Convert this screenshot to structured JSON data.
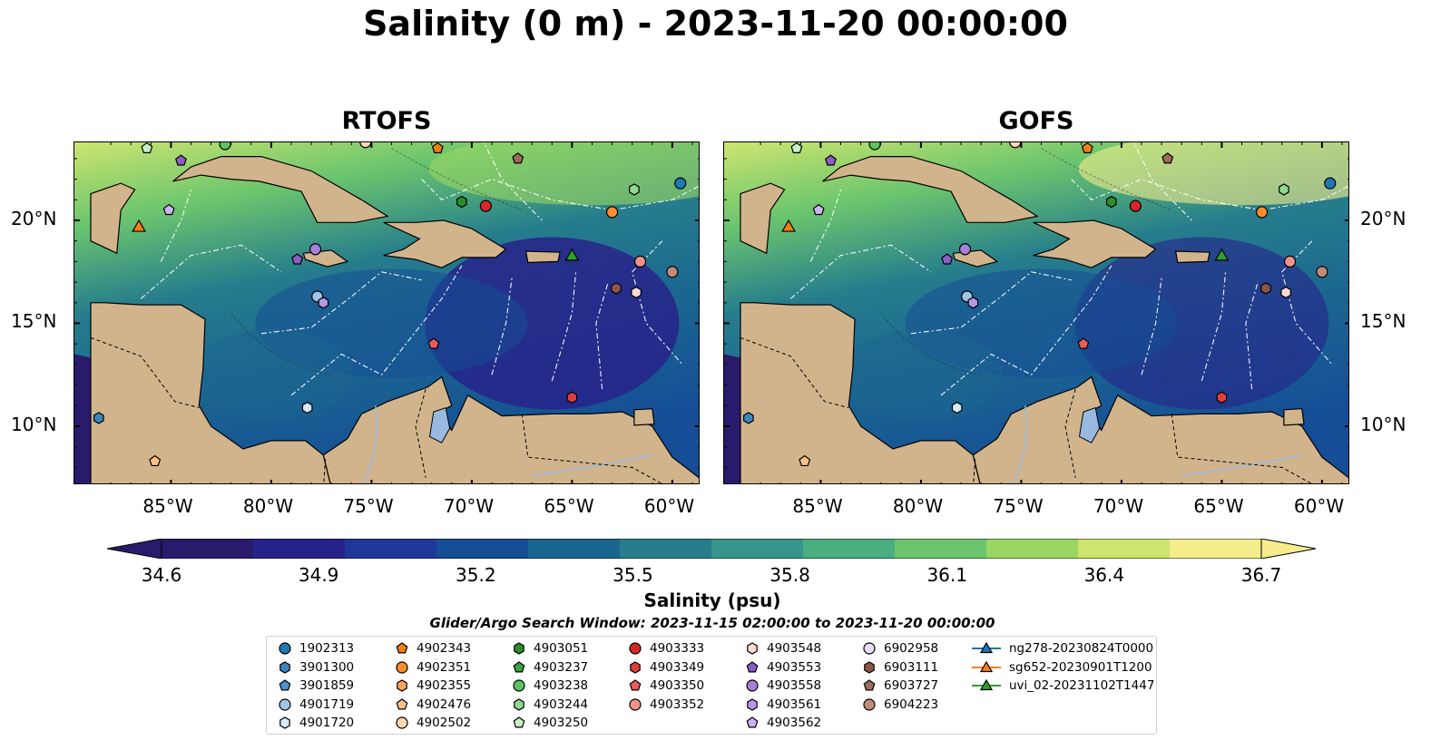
{
  "title": "Salinity (0 m) - 2023-11-20 00:00:00",
  "panels": [
    {
      "name": "RTOFS"
    },
    {
      "name": "GOFS"
    }
  ],
  "lon_ticks": [
    "85°W",
    "80°W",
    "75°W",
    "70°W",
    "65°W",
    "60°W"
  ],
  "lat_ticks": [
    "20°N",
    "15°N",
    "10°N"
  ],
  "colorbar": {
    "label": "Salinity (psu)",
    "ticks": [
      "34.6",
      "34.9",
      "35.2",
      "35.5",
      "35.8",
      "36.1",
      "36.4",
      "36.7"
    ],
    "colors": [
      "#2a1a6c",
      "#27238a",
      "#1f3798",
      "#154e96",
      "#1b6690",
      "#267d8c",
      "#35958a",
      "#4aae80",
      "#6bc56e",
      "#99d763",
      "#cde56f",
      "#f5ec8c"
    ]
  },
  "search_window": "Glider/Argo Search Window: 2023-11-15 02:00:00 to 2023-11-20 00:00:00",
  "legend": [
    {
      "label": "1902313",
      "marker": "circle",
      "color": "#1f77b4"
    },
    {
      "label": "3901300",
      "marker": "hexagon",
      "color": "#3a86c2"
    },
    {
      "label": "3901859",
      "marker": "pentagon",
      "color": "#4a92d0"
    },
    {
      "label": "4901719",
      "marker": "circle",
      "color": "#9ec4ea"
    },
    {
      "label": "4901720",
      "marker": "hexagon",
      "color": "#d6e8fa"
    },
    {
      "label": "4902343",
      "marker": "pentagon",
      "color": "#f07f12"
    },
    {
      "label": "4902351",
      "marker": "circle",
      "color": "#fb8c2e"
    },
    {
      "label": "4902355",
      "marker": "hexagon",
      "color": "#fca45c"
    },
    {
      "label": "4902476",
      "marker": "pentagon",
      "color": "#fdc087"
    },
    {
      "label": "4902502",
      "marker": "circle",
      "color": "#fdd8b4"
    },
    {
      "label": "4903051",
      "marker": "hexagon",
      "color": "#2a8f2a"
    },
    {
      "label": "4903237",
      "marker": "pentagon",
      "color": "#3aa43a"
    },
    {
      "label": "4903238",
      "marker": "circle",
      "color": "#5cc25c"
    },
    {
      "label": "4903244",
      "marker": "hexagon",
      "color": "#8fd88f"
    },
    {
      "label": "4903250",
      "marker": "pentagon",
      "color": "#c8f0c2"
    },
    {
      "label": "4903333",
      "marker": "circle",
      "color": "#d62728"
    },
    {
      "label": "4903349",
      "marker": "hexagon",
      "color": "#de3e40"
    },
    {
      "label": "4903350",
      "marker": "pentagon",
      "color": "#ec5a5c"
    },
    {
      "label": "4903352",
      "marker": "circle",
      "color": "#f2928c"
    },
    {
      "label": "4903548",
      "marker": "hexagon",
      "color": "#fad8d6"
    },
    {
      "label": "4903553",
      "marker": "pentagon",
      "color": "#8c5cc4"
    },
    {
      "label": "4903558",
      "marker": "circle",
      "color": "#a67fd6"
    },
    {
      "label": "4903561",
      "marker": "hexagon",
      "color": "#b896e4"
    },
    {
      "label": "4903562",
      "marker": "pentagon",
      "color": "#cdb3f2"
    },
    {
      "label": "6902958",
      "marker": "circle",
      "color": "#e9dcfc"
    },
    {
      "label": "6903111",
      "marker": "hexagon",
      "color": "#8c564b"
    },
    {
      "label": "6903727",
      "marker": "pentagon",
      "color": "#a06a5a"
    },
    {
      "label": "6904223",
      "marker": "circle",
      "color": "#c38a7a"
    },
    {
      "label": "ng278-20230824T0000",
      "marker": "triangle-line",
      "color": "#1f77b4"
    },
    {
      "label": "sg652-20230901T1200",
      "marker": "triangle-line",
      "color": "#ff7f0e"
    },
    {
      "label": "uvi_02-20231102T1447",
      "marker": "triangle-line",
      "color": "#2ca02c"
    }
  ]
}
